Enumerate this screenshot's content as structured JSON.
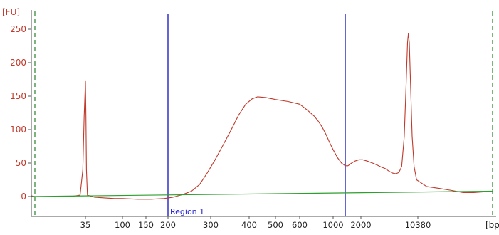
{
  "chart_data": {
    "type": "line",
    "title": "",
    "ylabel": "[FU]",
    "xlabel": "[bp]",
    "ylim": [
      -10,
      260
    ],
    "y_ticks": [
      0,
      50,
      100,
      150,
      200,
      250
    ],
    "x_ticks": [
      "35",
      "100",
      "150",
      "200",
      "300",
      "400",
      "500",
      "600",
      "1000",
      "2000",
      "10380"
    ],
    "x_scale": "log",
    "colors": {
      "trace": "#c0392b",
      "baseline": "#2e9e2e",
      "region_marker": "#2323c8",
      "range_marker": "#3a8a3a",
      "axis": "#555555",
      "tick_label_y": "#c0392b",
      "tick_label_x": "#222222"
    },
    "regions": [
      {
        "label": "Region 1",
        "start_bp": 200,
        "end_bp": 1300
      }
    ],
    "range_markers_bp": [
      20,
      17000
    ],
    "series": [
      {
        "kind": "electropherogram",
        "points": [
          [
            15,
            1
          ],
          [
            20,
            0
          ],
          [
            25,
            0
          ],
          [
            30,
            0
          ],
          [
            33,
            2
          ],
          [
            34,
            40
          ],
          [
            34.5,
            120
          ],
          [
            35,
            172
          ],
          [
            35.5,
            120
          ],
          [
            36,
            40
          ],
          [
            37,
            2
          ],
          [
            45,
            -1
          ],
          [
            60,
            -2
          ],
          [
            80,
            -3
          ],
          [
            100,
            -3
          ],
          [
            130,
            -4
          ],
          [
            160,
            -4
          ],
          [
            190,
            -3
          ],
          [
            210,
            -1
          ],
          [
            230,
            3
          ],
          [
            250,
            8
          ],
          [
            270,
            18
          ],
          [
            290,
            35
          ],
          [
            310,
            55
          ],
          [
            330,
            78
          ],
          [
            350,
            100
          ],
          [
            370,
            122
          ],
          [
            390,
            138
          ],
          [
            410,
            146
          ],
          [
            430,
            149
          ],
          [
            460,
            148
          ],
          [
            500,
            145
          ],
          [
            550,
            142
          ],
          [
            600,
            138
          ],
          [
            650,
            132
          ],
          [
            700,
            126
          ],
          [
            750,
            120
          ],
          [
            800,
            112
          ],
          [
            850,
            103
          ],
          [
            900,
            92
          ],
          [
            950,
            80
          ],
          [
            1000,
            70
          ],
          [
            1100,
            58
          ],
          [
            1200,
            50
          ],
          [
            1300,
            46
          ],
          [
            1400,
            46
          ],
          [
            1550,
            50
          ],
          [
            1700,
            53
          ],
          [
            1900,
            55
          ],
          [
            2100,
            55
          ],
          [
            2400,
            53
          ],
          [
            2800,
            50
          ],
          [
            3200,
            47
          ],
          [
            3600,
            44
          ],
          [
            4000,
            42
          ],
          [
            4500,
            38
          ],
          [
            5000,
            35
          ],
          [
            5500,
            34
          ],
          [
            6000,
            36
          ],
          [
            6500,
            45
          ],
          [
            7000,
            90
          ],
          [
            7400,
            170
          ],
          [
            7700,
            230
          ],
          [
            7900,
            244
          ],
          [
            8100,
            230
          ],
          [
            8400,
            170
          ],
          [
            8800,
            90
          ],
          [
            9300,
            45
          ],
          [
            10000,
            25
          ],
          [
            11000,
            15
          ],
          [
            12000,
            12
          ],
          [
            13000,
            9
          ],
          [
            14000,
            6
          ],
          [
            15000,
            6
          ],
          [
            16000,
            7
          ],
          [
            17000,
            8
          ]
        ]
      },
      {
        "kind": "baseline",
        "points": [
          [
            15,
            0
          ],
          [
            17000,
            8
          ]
        ]
      }
    ],
    "grid": false,
    "legend": "none"
  }
}
